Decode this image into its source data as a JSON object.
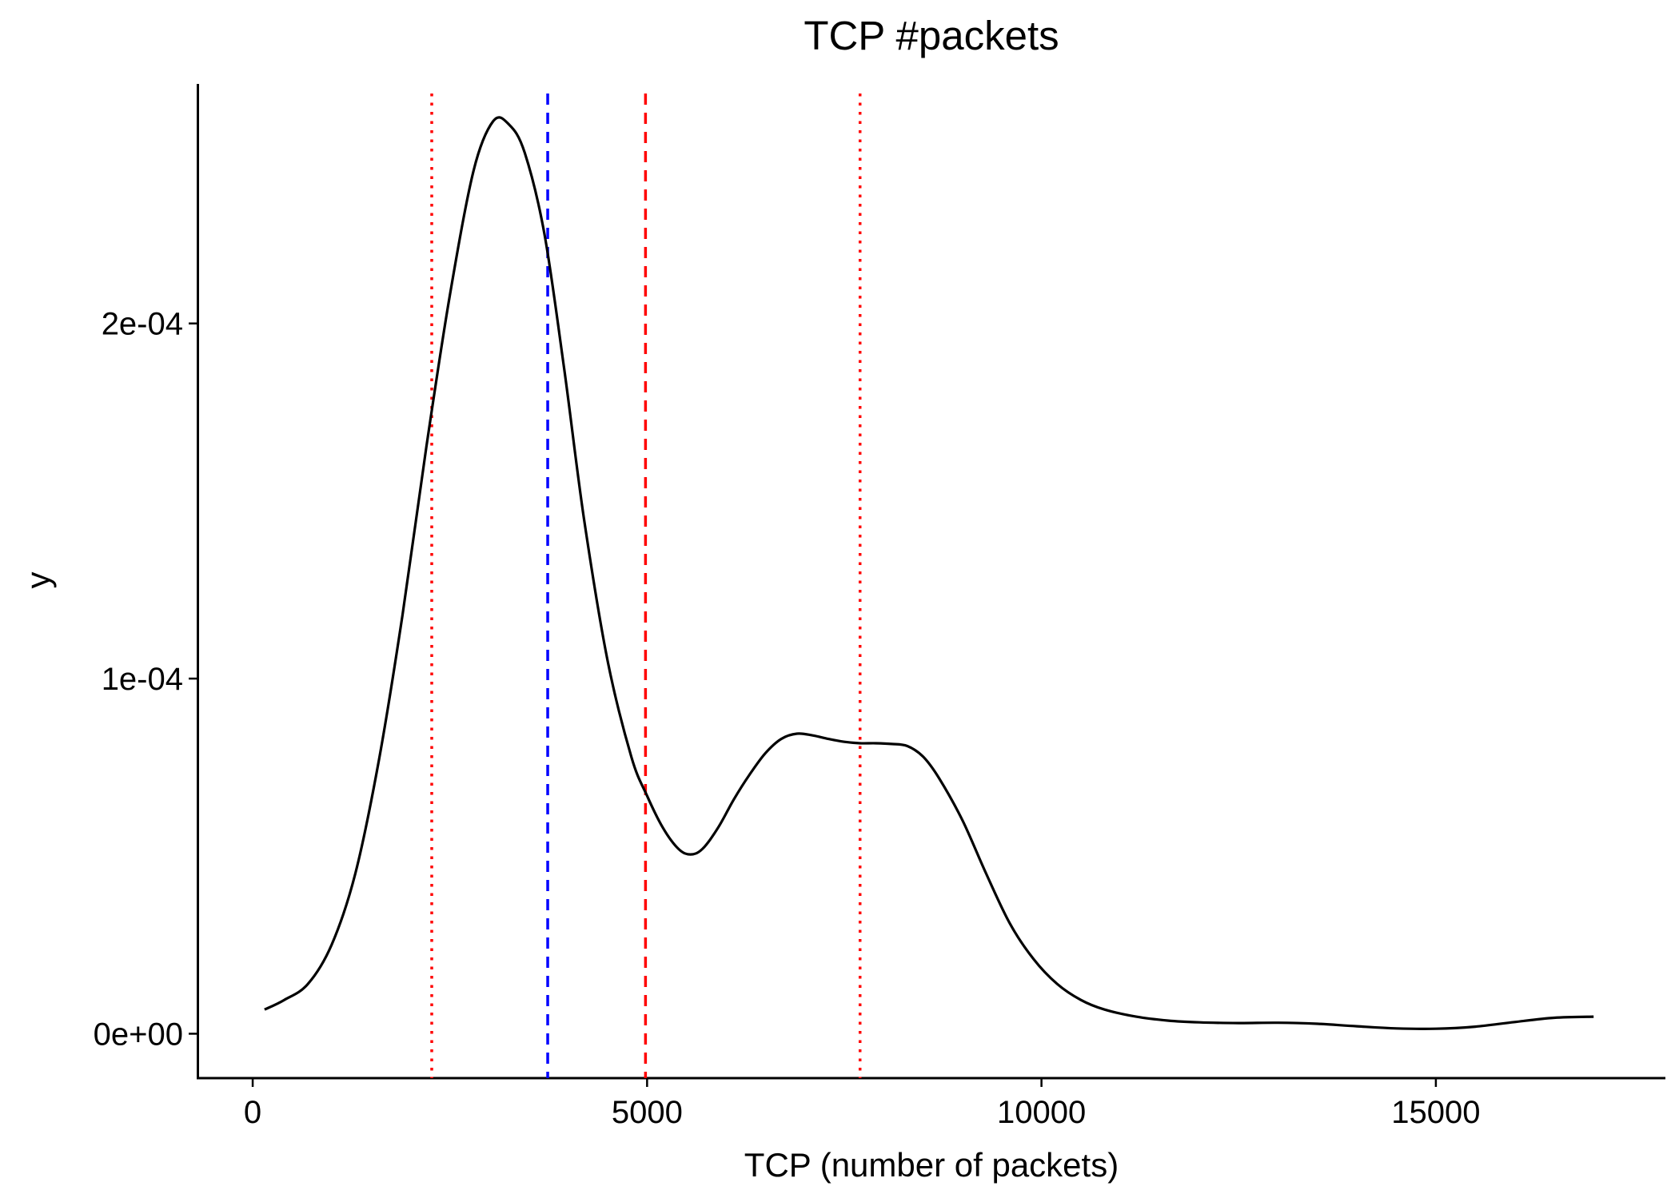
{
  "chart_data": {
    "type": "line",
    "title": "TCP #packets",
    "xlabel": "TCP (number of packets)",
    "ylabel": "y",
    "xlim": [
      -700,
      17900
    ],
    "ylim": [
      -1.25e-05,
      0.000267
    ],
    "x_ticks": [
      {
        "value": 0,
        "label": "0"
      },
      {
        "value": 5000,
        "label": "5000"
      },
      {
        "value": 10000,
        "label": "10000"
      },
      {
        "value": 15000,
        "label": "15000"
      }
    ],
    "y_ticks": [
      {
        "value": 0,
        "label": "0e+00"
      },
      {
        "value": 0.0001,
        "label": "1e-04"
      },
      {
        "value": 0.0002,
        "label": "2e-04"
      }
    ],
    "grid": false,
    "series": [
      {
        "color": "#000000",
        "x": [
          150,
          400,
          700,
          1000,
          1300,
          1600,
          1900,
          2200,
          2500,
          2800,
          3050,
          3250,
          3450,
          3700,
          3950,
          4200,
          4500,
          4800,
          5000,
          5200,
          5400,
          5550,
          5700,
          5900,
          6100,
          6300,
          6500,
          6700,
          6900,
          7100,
          7300,
          7500,
          7700,
          7900,
          8100,
          8300,
          8500,
          8700,
          9000,
          9300,
          9600,
          9900,
          10200,
          10500,
          10800,
          11200,
          11600,
          12000,
          12500,
          13000,
          13500,
          14000,
          14500,
          15000,
          15500,
          16000,
          16500,
          17000
        ],
        "y": [
          6.8e-06,
          9.5e-06,
          1.4e-05,
          2.5e-05,
          4.5e-05,
          7.7e-05,
          0.000118,
          0.000165,
          0.000208,
          0.000243,
          0.000257,
          0.000256,
          0.000248,
          0.000225,
          0.000187,
          0.000145,
          0.000105,
          7.8e-05,
          6.7e-05,
          5.8e-05,
          5.2e-05,
          5.05e-05,
          5.2e-05,
          5.8e-05,
          6.6e-05,
          7.3e-05,
          7.9e-05,
          8.3e-05,
          8.45e-05,
          8.4e-05,
          8.3e-05,
          8.22e-05,
          8.18e-05,
          8.18e-05,
          8.16e-05,
          8.1e-05,
          7.8e-05,
          7.2e-05,
          6e-05,
          4.5e-05,
          3.1e-05,
          2.1e-05,
          1.4e-05,
          9.5e-06,
          6.8e-06,
          4.8e-06,
          3.7e-06,
          3.2e-06,
          3e-06,
          3.1e-06,
          2.8e-06,
          2.1e-06,
          1.5e-06,
          1.4e-06,
          2e-06,
          3.3e-06,
          4.5e-06,
          4.8e-06
        ]
      }
    ],
    "reference_lines": [
      {
        "x": 2270,
        "color": "#ff0000",
        "style": "dotted"
      },
      {
        "x": 3740,
        "color": "#0000ff",
        "style": "dashed"
      },
      {
        "x": 4980,
        "color": "#ff0000",
        "style": "dashed"
      },
      {
        "x": 7700,
        "color": "#ff0000",
        "style": "dotted"
      }
    ]
  }
}
